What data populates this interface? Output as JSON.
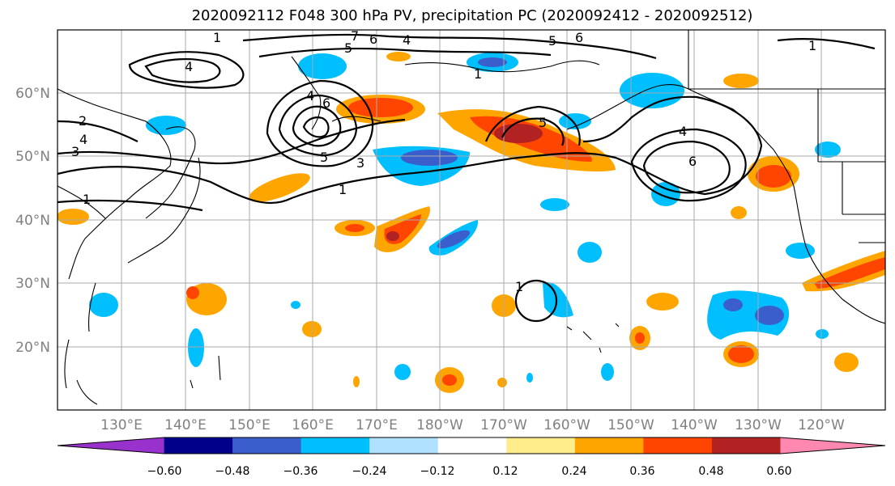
{
  "title": "2020092112 F048 300 hPa PV, precipitation PC (2020092412 - 2020092512)",
  "lat_labels": [
    "60°N",
    "50°N",
    "40°N",
    "30°N",
    "20°N"
  ],
  "lon_labels": [
    "130°E",
    "140°E",
    "150°E",
    "160°E",
    "170°E",
    "180°W",
    "170°W",
    "160°W",
    "150°W",
    "140°W",
    "130°W",
    "120°W"
  ],
  "colorbar": {
    "tick_labels": [
      "−0.60",
      "−0.48",
      "−0.36",
      "−0.24",
      "−0.12",
      "0.12",
      "0.24",
      "0.36",
      "0.48",
      "0.60"
    ],
    "under_color": "#9932cc",
    "over_color": "#ff88b0",
    "colors": [
      "#00008b",
      "#3a5fcd",
      "#00bfff",
      "#b0e2ff",
      "#ffffff",
      "#ffec8b",
      "#ffa500",
      "#ff4500",
      "#b22222"
    ]
  },
  "contour_labels": [
    "1",
    "2",
    "3",
    "4",
    "5",
    "6",
    "7"
  ]
}
